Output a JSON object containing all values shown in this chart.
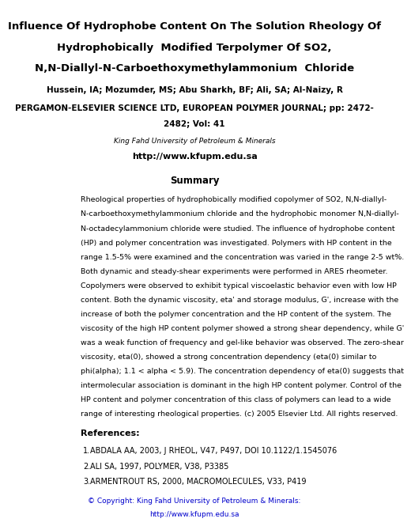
{
  "title_line1": "Influence Of Hydrophobe Content On The Solution Rheology Of",
  "title_line2": "Hydrophobically  Modified Terpolymer Of SO2,",
  "title_line3": "N,N-Diallyl-N-Carboethoxymethylammonium  Chloride",
  "authors": "Hussein, IA; Mozumder, MS; Abu Sharkh, BF; Ali, SA; Al-Naizy, R",
  "journal": "PERGAMON-ELSEVIER SCIENCE LTD, EUROPEAN POLYMER JOURNAL; pp: 2472-",
  "journal2": "2482; Vol: 41",
  "affil": "King Fahd University of Petroleum & Minerals",
  "url": "http://www.kfupm.edu.sa",
  "summary_title": "Summary",
  "summary_text": "Rheological properties of hydrophobically modified copolymer of SO2, N,N-diallyl-\nN-carboethoxymethylammonium chloride and the hydrophobic monomer N,N-diallyl-\nN-octadecylammonium chloride were studied. The influence of hydrophobe content\n(HP) and polymer concentration was investigated. Polymers with HP content in the\nrange 1.5-5% were examined and the concentration was varied in the range 2-5 wt%.\nBoth dynamic and steady-shear experiments were performed in ARES rheometer.\nCopolymers were observed to exhibit typical viscoelastic behavior even with low HP\ncontent. Both the dynamic viscosity, eta' and storage modulus, G', increase with the\nincrease of both the polymer concentration and the HP content of the system. The\nviscosity of the high HP content polymer showed a strong shear dependency, while G'\nwas a weak function of frequency and gel-like behavior was observed. The zero-shear\nviscosity, eta(0), showed a strong concentration dependency (eta(0) similar to\nphi(alpha); 1.1 < alpha < 5.9). The concentration dependency of eta(0) suggests that\nintermolecular association is dominant in the high HP content polymer. Control of the\nHP content and polymer concentration of this class of polymers can lead to a wide\nrange of interesting rheological properties. (c) 2005 Elsevier Ltd. All rights reserved.",
  "ref_title": "References:",
  "ref1": "ABDALA AA, 2003, J RHEOL, V47, P497, DOI 10.1122/1.1545076",
  "ref2": "ALI SA, 1997, POLYMER, V38, P3385",
  "ref3": "ARMENTROUT RS, 2000, MACROMOLECULES, V33, P419",
  "copyright": "© Copyright: King Fahd University of Petroleum & Minerals:",
  "copyright_url": "http://www.kfupm.edu.sa",
  "bg_color": "#ffffff",
  "title_color": "#000000",
  "text_color": "#000000",
  "url_color": "#0000cc",
  "ref_text_color": "#000000"
}
